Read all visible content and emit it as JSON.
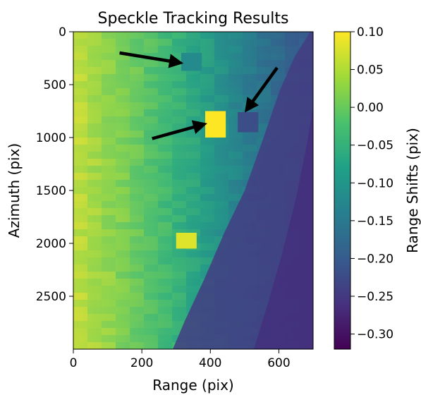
{
  "chart_data": {
    "type": "heatmap",
    "title": "Speckle Tracking Results",
    "xlabel": "Range (pix)",
    "ylabel": "Azimuth (pix)",
    "xlim": [
      0,
      700
    ],
    "ylim": [
      3000,
      0
    ],
    "xticks": [
      0,
      200,
      400,
      600
    ],
    "yticks": [
      0,
      500,
      1000,
      1500,
      2000,
      2500
    ],
    "xtick_labels": [
      "0",
      "200",
      "400",
      "600"
    ],
    "ytick_labels": [
      "0",
      "500",
      "1000",
      "1500",
      "2000",
      "2500"
    ],
    "colorbar": {
      "label": "Range Shifts (pix)",
      "range": [
        -0.32,
        0.1
      ],
      "ticks": [
        0.1,
        0.05,
        0.0,
        -0.05,
        -0.1,
        -0.15,
        -0.2,
        -0.25,
        -0.3
      ],
      "tick_labels": [
        "0.10",
        "0.05",
        "0.00",
        "−0.05",
        "−0.10",
        "−0.15",
        "−0.20",
        "−0.25",
        "−0.30"
      ],
      "colormap": "viridis",
      "colors": [
        "#440154",
        "#46327e",
        "#365c8d",
        "#277f8e",
        "#1fa187",
        "#4ac16d",
        "#a0da39",
        "#fde725"
      ]
    },
    "grid": false,
    "bright_patches": [
      {
        "x": [
          385,
          445
        ],
        "y": [
          750,
          1000
        ],
        "value": 0.1
      },
      {
        "x": [
          300,
          360
        ],
        "y": [
          1900,
          2050
        ],
        "value": 0.08
      }
    ],
    "dark_patches": [
      {
        "x": [
          315,
          375
        ],
        "y": [
          200,
          370
        ],
        "value": -0.12
      },
      {
        "x": [
          480,
          540
        ],
        "y": [
          760,
          950
        ],
        "value": -0.22
      }
    ],
    "annotations": [
      {
        "type": "arrow",
        "from": [
          135,
          200
        ],
        "to": [
          305,
          290
        ]
      },
      {
        "type": "arrow",
        "from": [
          230,
          1010
        ],
        "to": [
          375,
          880
        ]
      },
      {
        "type": "arrow",
        "from": [
          595,
          340
        ],
        "to": [
          510,
          720
        ]
      }
    ]
  }
}
